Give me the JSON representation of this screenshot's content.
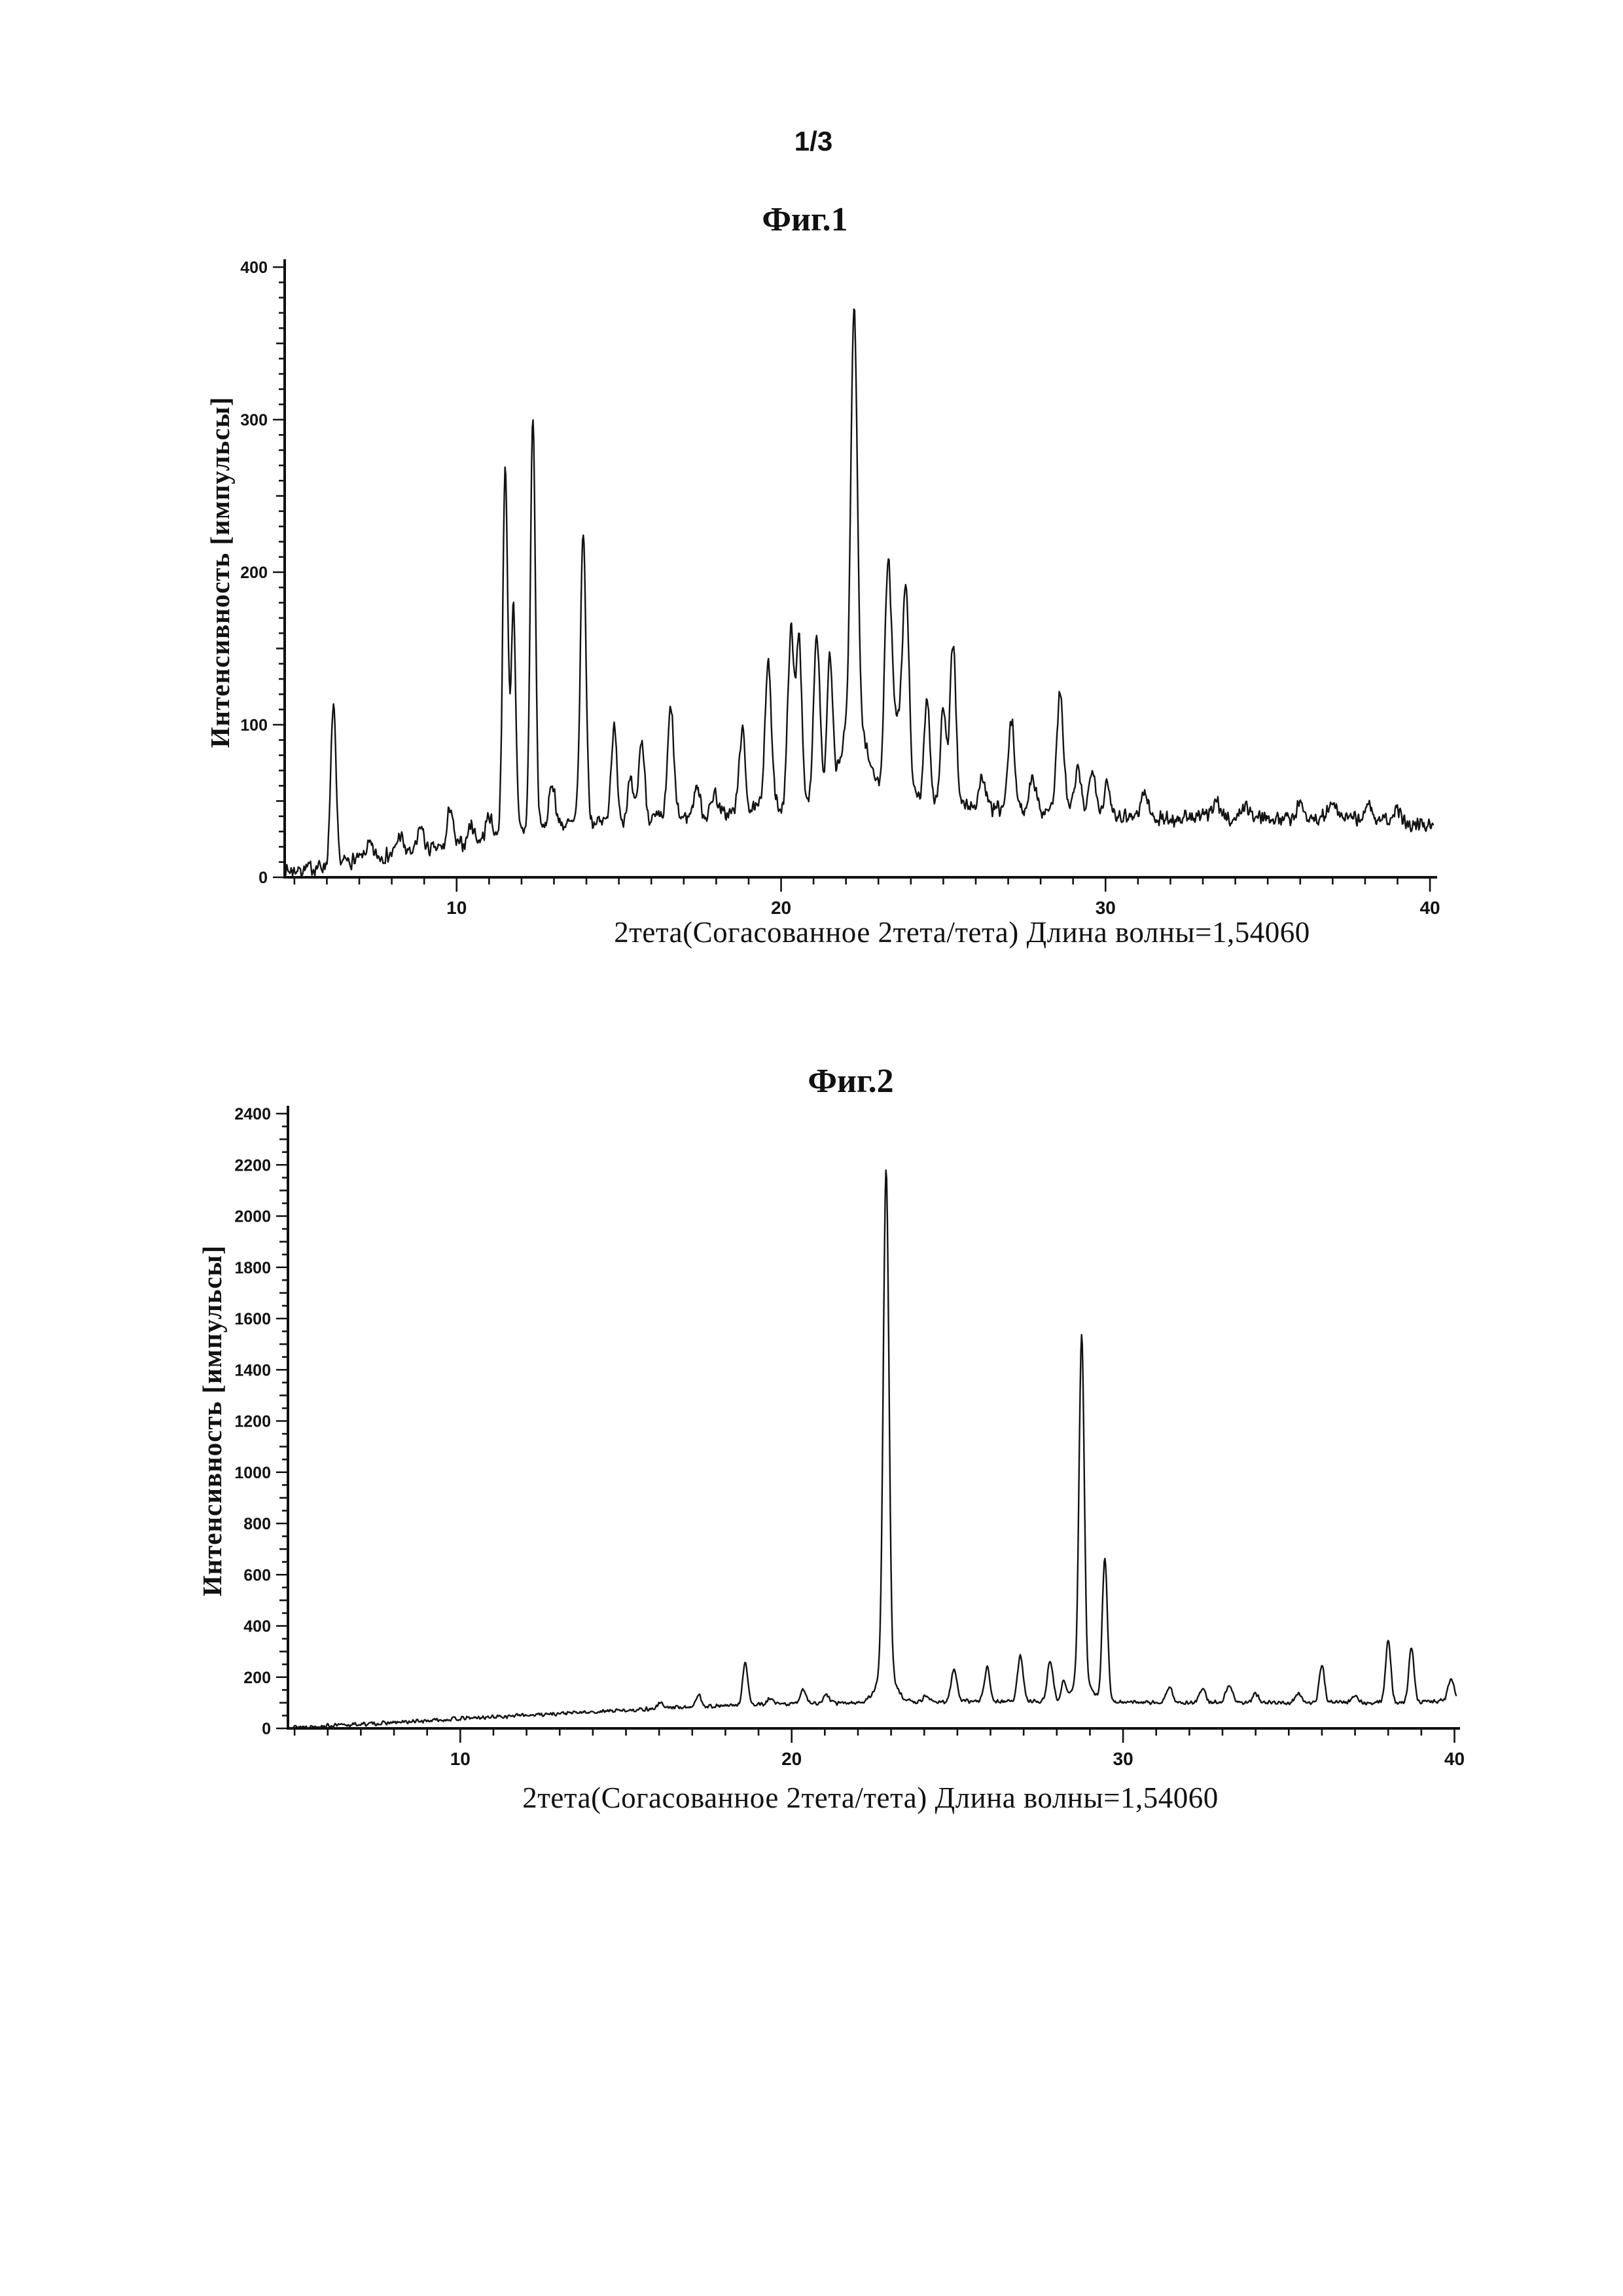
{
  "page": {
    "number": "1/3"
  },
  "figures": [
    {
      "title": "Фиг.1",
      "caption": "2тета(Согасованное 2тета/тета) Длина волны=1,54060"
    },
    {
      "title": "Фиг.2",
      "caption": "2тета(Согасованное 2тета/тета) Длина волны=1,54060"
    }
  ],
  "chart_data": [
    {
      "type": "line",
      "title": "Фиг.1",
      "xlabel": "2тета(Согасованное 2тета/тета) Длина волны=1,54060",
      "ylabel": "Интенсивность [импульсы]",
      "xlim": [
        4.7,
        40.1
      ],
      "ylim": [
        0,
        400
      ],
      "x_ticks": [
        10,
        20,
        30,
        40
      ],
      "x_minor_step": 1,
      "y_ticks": [
        0,
        100,
        200,
        300,
        400
      ],
      "y_minor_step": 10,
      "grid": false,
      "legend": false,
      "series_name": "XRD pattern, crystalline form 1",
      "baseline_points": [
        [
          4.7,
          4
        ],
        [
          5.5,
          6
        ],
        [
          6.8,
          11
        ],
        [
          8,
          15
        ],
        [
          9.5,
          19
        ],
        [
          10.5,
          23
        ],
        [
          11.2,
          27
        ],
        [
          12,
          30
        ],
        [
          13,
          34
        ],
        [
          14,
          36
        ],
        [
          16,
          38
        ],
        [
          18,
          41
        ],
        [
          19.5,
          45
        ],
        [
          21,
          48
        ],
        [
          22,
          52
        ],
        [
          23,
          55
        ],
        [
          24,
          52
        ],
        [
          25,
          49
        ],
        [
          26,
          46
        ],
        [
          27,
          44
        ],
        [
          28,
          44
        ],
        [
          29,
          46
        ],
        [
          30,
          42
        ],
        [
          31,
          40
        ],
        [
          32,
          38
        ],
        [
          33,
          40
        ],
        [
          34,
          38
        ],
        [
          35,
          40
        ],
        [
          36,
          38
        ],
        [
          37,
          40
        ],
        [
          38,
          38
        ],
        [
          39,
          36
        ],
        [
          40.1,
          34
        ]
      ],
      "peaks": [
        [
          6.2,
          104,
          0.11
        ],
        [
          7.3,
          8,
          0.15
        ],
        [
          8.25,
          12,
          0.13
        ],
        [
          8.9,
          16,
          0.12
        ],
        [
          9.8,
          27,
          0.11
        ],
        [
          10.45,
          12,
          0.13
        ],
        [
          11.0,
          15,
          0.13
        ],
        [
          11.5,
          240,
          0.11
        ],
        [
          11.75,
          150,
          0.1
        ],
        [
          12.35,
          270,
          0.11
        ],
        [
          12.95,
          28,
          0.13
        ],
        [
          13.9,
          190,
          0.12
        ],
        [
          14.85,
          60,
          0.13
        ],
        [
          15.35,
          25,
          0.12
        ],
        [
          15.7,
          52,
          0.13
        ],
        [
          16.6,
          72,
          0.13
        ],
        [
          17.4,
          20,
          0.13
        ],
        [
          17.95,
          15,
          0.13
        ],
        [
          18.8,
          53,
          0.13
        ],
        [
          19.6,
          95,
          0.14
        ],
        [
          20.3,
          115,
          0.13
        ],
        [
          20.55,
          112,
          0.12
        ],
        [
          21.1,
          112,
          0.14
        ],
        [
          21.5,
          88,
          0.12
        ],
        [
          22.25,
          265,
          0.14
        ],
        [
          22.25,
          55,
          0.5
        ],
        [
          23.3,
          148,
          0.15
        ],
        [
          23.6,
          45,
          0.2
        ],
        [
          23.85,
          130,
          0.14
        ],
        [
          24.5,
          68,
          0.12
        ],
        [
          25.0,
          62,
          0.12
        ],
        [
          25.3,
          105,
          0.13
        ],
        [
          26.2,
          20,
          0.14
        ],
        [
          27.1,
          58,
          0.14
        ],
        [
          27.75,
          24,
          0.13
        ],
        [
          28.6,
          75,
          0.14
        ],
        [
          29.15,
          24,
          0.13
        ],
        [
          29.6,
          30,
          0.13
        ],
        [
          30.05,
          18,
          0.13
        ],
        [
          31.2,
          16,
          0.15
        ],
        [
          33.4,
          12,
          0.16
        ],
        [
          34.3,
          9,
          0.16
        ],
        [
          36.0,
          10,
          0.16
        ],
        [
          37.0,
          8,
          0.16
        ],
        [
          38.1,
          10,
          0.16
        ],
        [
          39.0,
          8,
          0.16
        ]
      ],
      "noise_amp": 6,
      "noise_seed": 7
    },
    {
      "type": "line",
      "title": "Фиг.2",
      "xlabel": "2тета(Согасованное 2тета/тета) Длина волны=1,54060",
      "ylabel": "Интенсивность [импульсы]",
      "xlim": [
        4.8,
        40.05
      ],
      "ylim": [
        0,
        2400
      ],
      "x_ticks": [
        10,
        20,
        30,
        40
      ],
      "x_minor_step": 1,
      "y_ticks": [
        0,
        200,
        400,
        600,
        800,
        1000,
        1200,
        1400,
        1600,
        1800,
        2000,
        2200,
        2400
      ],
      "y_minor_step": 50,
      "grid": false,
      "legend": false,
      "series_name": "XRD pattern, crystalline form 2",
      "baseline_points": [
        [
          4.8,
          5
        ],
        [
          6,
          10
        ],
        [
          8,
          22
        ],
        [
          10,
          38
        ],
        [
          12,
          52
        ],
        [
          14,
          64
        ],
        [
          16,
          78
        ],
        [
          17,
          85
        ],
        [
          18,
          88
        ],
        [
          19,
          92
        ],
        [
          20,
          96
        ],
        [
          21,
          98
        ],
        [
          22,
          100
        ],
        [
          23,
          102
        ],
        [
          24,
          104
        ],
        [
          25,
          106
        ],
        [
          26,
          106
        ],
        [
          27,
          106
        ],
        [
          28,
          108
        ],
        [
          29,
          108
        ],
        [
          30,
          104
        ],
        [
          31,
          102
        ],
        [
          32,
          102
        ],
        [
          33,
          102
        ],
        [
          34,
          100
        ],
        [
          35,
          100
        ],
        [
          36,
          102
        ],
        [
          37,
          100
        ],
        [
          38,
          102
        ],
        [
          39,
          104
        ],
        [
          40.05,
          110
        ]
      ],
      "peaks": [
        [
          16.05,
          20,
          0.13
        ],
        [
          17.2,
          45,
          0.11
        ],
        [
          18.6,
          165,
          0.11
        ],
        [
          19.35,
          25,
          0.11
        ],
        [
          20.35,
          55,
          0.13
        ],
        [
          21.05,
          32,
          0.13
        ],
        [
          22.85,
          1960,
          0.12
        ],
        [
          22.85,
          120,
          0.38
        ],
        [
          24.05,
          26,
          0.11
        ],
        [
          24.9,
          125,
          0.12
        ],
        [
          25.9,
          130,
          0.12
        ],
        [
          26.9,
          175,
          0.12
        ],
        [
          27.8,
          155,
          0.12
        ],
        [
          28.2,
          65,
          0.1
        ],
        [
          28.75,
          1340,
          0.11
        ],
        [
          28.75,
          90,
          0.35
        ],
        [
          29.45,
          560,
          0.11
        ],
        [
          31.4,
          55,
          0.13
        ],
        [
          32.4,
          50,
          0.13
        ],
        [
          33.2,
          65,
          0.14
        ],
        [
          34.0,
          34,
          0.13
        ],
        [
          35.3,
          36,
          0.13
        ],
        [
          36.0,
          145,
          0.11
        ],
        [
          37.0,
          28,
          0.13
        ],
        [
          38.0,
          245,
          0.11
        ],
        [
          38.7,
          212,
          0.11
        ],
        [
          39.9,
          85,
          0.13
        ]
      ],
      "noise_amp": 9,
      "noise_seed": 13
    }
  ]
}
